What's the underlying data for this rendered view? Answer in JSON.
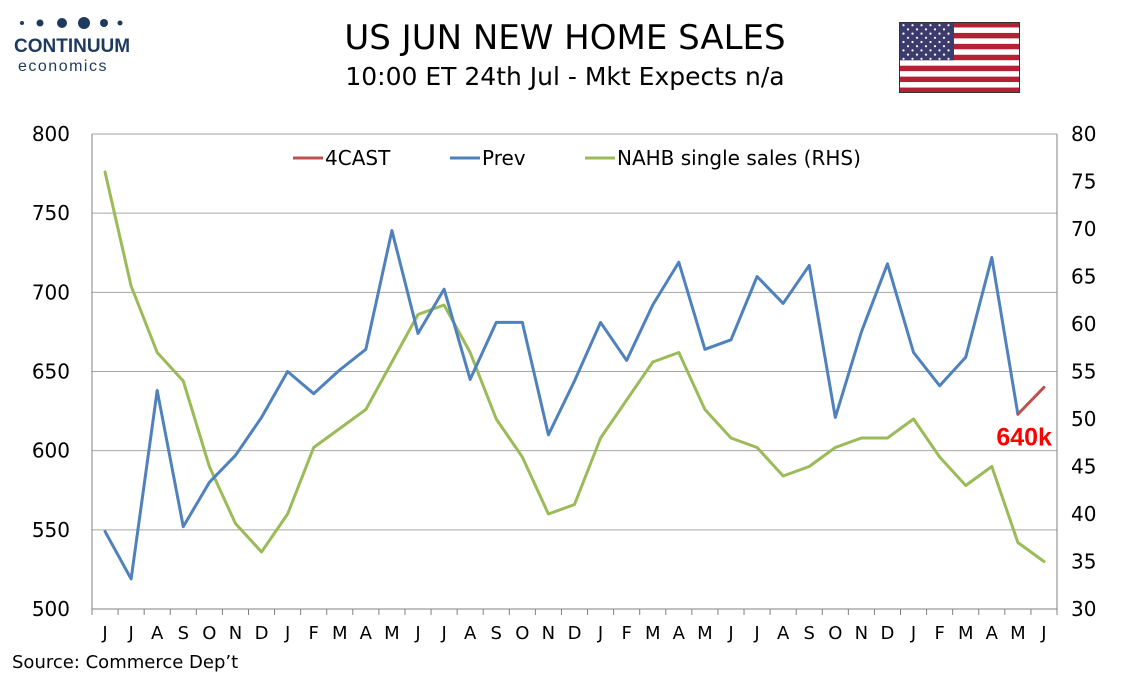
{
  "header": {
    "logo_top": "CONTINUUM",
    "logo_bottom": "economics",
    "title": "US JUN NEW HOME SALES",
    "subtitle": "10:00 ET 24th Jul - Mkt Expects n/a",
    "flag_icon": "us-flag-icon"
  },
  "footer": {
    "source": "Source: Commerce Dep’t"
  },
  "colors": {
    "forecast": "#c0504d",
    "prev": "#4f81bd",
    "nahb": "#9bbb59",
    "grid": "#a6a6a6",
    "annotation": "#ff0000"
  },
  "chart_data": {
    "type": "line",
    "categories": [
      "J",
      "J",
      "A",
      "S",
      "O",
      "N",
      "D",
      "J",
      "F",
      "M",
      "A",
      "M",
      "J",
      "J",
      "A",
      "S",
      "O",
      "N",
      "D",
      "J",
      "F",
      "M",
      "A",
      "M",
      "J",
      "J",
      "A",
      "S",
      "O",
      "N",
      "D",
      "J",
      "F",
      "M",
      "A",
      "M",
      "J"
    ],
    "y_left": {
      "ylim": [
        500,
        800
      ],
      "ticks": [
        500,
        550,
        600,
        650,
        700,
        750,
        800
      ]
    },
    "y_right": {
      "ylim": [
        30,
        80
      ],
      "ticks": [
        30,
        35,
        40,
        45,
        50,
        55,
        60,
        65,
        70,
        75,
        80
      ]
    },
    "grid": true,
    "legend_position": "top",
    "series": [
      {
        "name": "4CAST",
        "axis": "left",
        "values": [
          null,
          null,
          null,
          null,
          null,
          null,
          null,
          null,
          null,
          null,
          null,
          null,
          null,
          null,
          null,
          null,
          null,
          null,
          null,
          null,
          null,
          null,
          null,
          null,
          null,
          null,
          null,
          null,
          null,
          null,
          null,
          null,
          null,
          null,
          null,
          623,
          640
        ]
      },
      {
        "name": "Prev",
        "axis": "left",
        "values": [
          549,
          519,
          638,
          552,
          580,
          597,
          621,
          650,
          636,
          651,
          664,
          739,
          674,
          702,
          645,
          681,
          681,
          610,
          644,
          681,
          657,
          692,
          719,
          664,
          670,
          710,
          693,
          717,
          621,
          675,
          718,
          662,
          641,
          659,
          722,
          623,
          null
        ]
      },
      {
        "name": "NAHB single sales (RHS)",
        "axis": "right",
        "values": [
          76,
          64,
          57,
          54,
          45,
          39,
          36,
          40,
          47,
          49,
          51,
          56,
          61,
          62,
          57,
          50,
          46,
          40,
          41,
          48,
          52,
          56,
          57,
          51,
          48,
          47,
          44,
          45,
          47,
          48,
          48,
          50,
          46,
          43,
          45,
          37,
          35
        ]
      }
    ],
    "annotations": [
      {
        "text": "640k",
        "x_index": 36,
        "y": 640
      }
    ]
  }
}
